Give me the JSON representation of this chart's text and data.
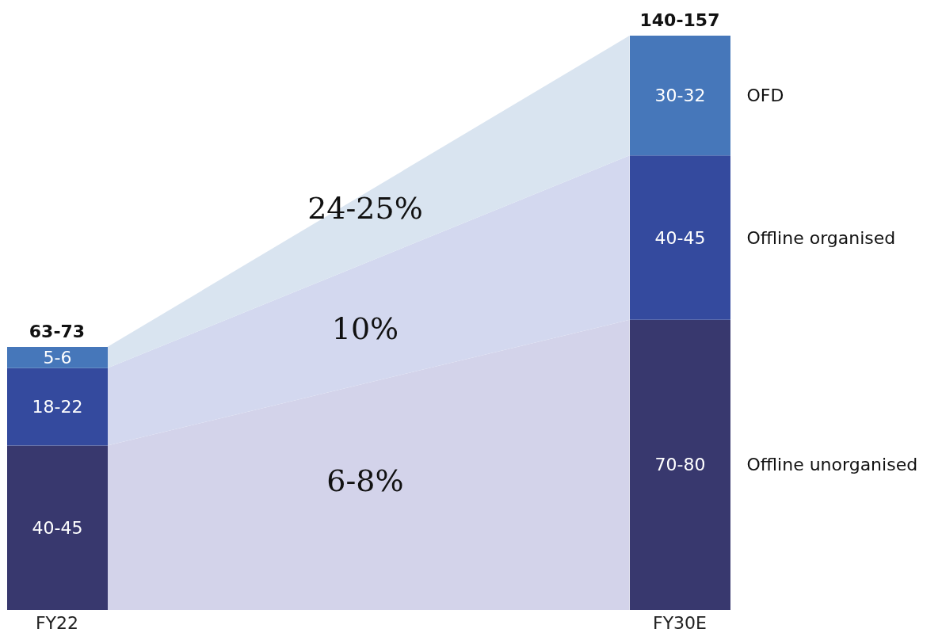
{
  "chart_data": {
    "type": "bar",
    "stacked": true,
    "categories": [
      "FY22",
      "FY30E"
    ],
    "series": [
      {
        "name": "Offline unorganised",
        "color": "#38386e",
        "values": [
          42.5,
          75
        ],
        "value_labels": [
          "40-45",
          "70-80"
        ]
      },
      {
        "name": "Offline organised",
        "color": "#344a9e",
        "values": [
          20,
          42.5
        ],
        "value_labels": [
          "18-22",
          "40-45"
        ]
      },
      {
        "name": "OFD",
        "color": "#4677ba",
        "values": [
          5.5,
          31
        ],
        "value_labels": [
          "5-6",
          "30-32"
        ]
      }
    ],
    "totals": [
      "63-73",
      "140-157"
    ],
    "annotations": [
      "24-25%",
      "10%",
      "6-8%"
    ]
  }
}
